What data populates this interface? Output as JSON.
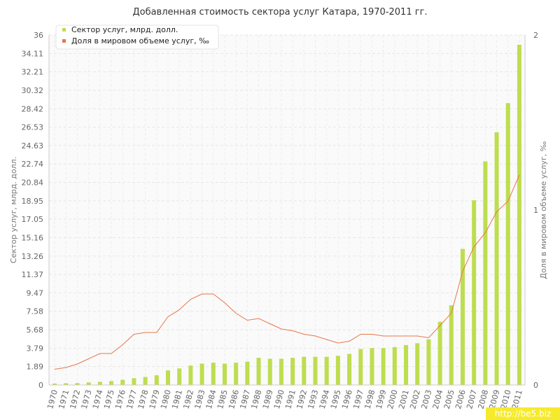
{
  "chart_data": {
    "type": "bar",
    "title": "Добавленная стоимость сектора услуг Катара, 1970-2011 гг.",
    "categories": [
      "1970",
      "1971",
      "1972",
      "1973",
      "1974",
      "1975",
      "1976",
      "1977",
      "1978",
      "1979",
      "1980",
      "1981",
      "1982",
      "1983",
      "1984",
      "1985",
      "1986",
      "1987",
      "1988",
      "1989",
      "1990",
      "1991",
      "1992",
      "1993",
      "1994",
      "1995",
      "1996",
      "1997",
      "1998",
      "1999",
      "2000",
      "2001",
      "2002",
      "2003",
      "2004",
      "2005",
      "2006",
      "2007",
      "2008",
      "2009",
      "2010",
      "2011"
    ],
    "series": [
      {
        "name": "Сектор услуг, млрд. долл.",
        "type": "bar",
        "axis": "left",
        "color": "#bedd4f",
        "values": [
          0.15,
          0.18,
          0.2,
          0.27,
          0.33,
          0.4,
          0.53,
          0.7,
          0.83,
          1.0,
          1.5,
          1.7,
          2.0,
          2.2,
          2.3,
          2.2,
          2.3,
          2.4,
          2.8,
          2.7,
          2.7,
          2.8,
          2.9,
          2.9,
          2.9,
          3.0,
          3.2,
          3.7,
          3.8,
          3.8,
          3.9,
          4.1,
          4.3,
          4.7,
          6.5,
          8.2,
          14.0,
          19.0,
          23.0,
          26.0,
          29.0,
          35.0
        ]
      },
      {
        "name": "Доля в мировом объеме услуг, ‰",
        "type": "line",
        "axis": "right",
        "color": "#e8754a",
        "values": [
          0.09,
          0.1,
          0.12,
          0.15,
          0.18,
          0.18,
          0.23,
          0.29,
          0.3,
          0.3,
          0.39,
          0.43,
          0.49,
          0.52,
          0.52,
          0.47,
          0.41,
          0.37,
          0.38,
          0.35,
          0.32,
          0.31,
          0.29,
          0.28,
          0.26,
          0.24,
          0.25,
          0.29,
          0.29,
          0.28,
          0.28,
          0.28,
          0.28,
          0.27,
          0.34,
          0.41,
          0.65,
          0.79,
          0.87,
          0.99,
          1.05,
          1.2
        ]
      }
    ],
    "ylabel": "Сектор услуг, млрд. долл.",
    "ylabel_right": "Доля в мировом объеме услуг, ‰",
    "ylim": [
      0,
      36
    ],
    "ylim_right": [
      0,
      2
    ],
    "yticks": [
      "0",
      "1.89",
      "3.79",
      "5.68",
      "7.58",
      "9.47",
      "11.37",
      "13.26",
      "15.16",
      "17.05",
      "18.95",
      "20.84",
      "22.74",
      "24.63",
      "26.53",
      "28.42",
      "30.32",
      "32.21",
      "34.11",
      "36"
    ],
    "yticks_right": [
      "0",
      "1",
      "2"
    ],
    "grid": true,
    "legend": "top-left"
  },
  "watermark": "http://be5.biz"
}
